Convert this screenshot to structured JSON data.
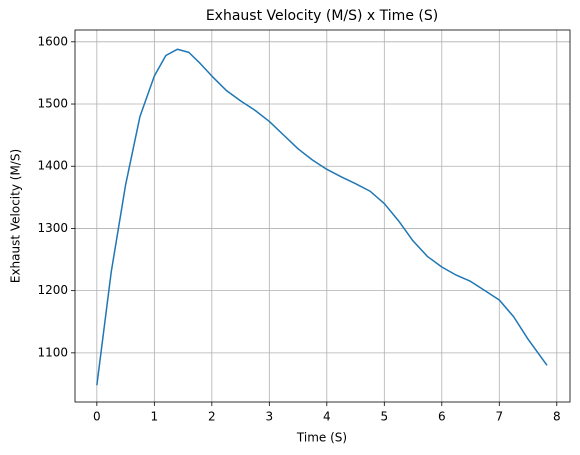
{
  "chart_data": {
    "type": "line",
    "title": "Exhaust Velocity (M/S) x Time (S)",
    "x_label": "Time (S)",
    "y_label": "Exhaust Velocity (M/S)",
    "x": [
      0,
      0.25,
      0.5,
      0.75,
      1,
      1.2,
      1.4,
      1.6,
      1.8,
      2,
      2.25,
      2.5,
      2.75,
      3,
      3.25,
      3.5,
      3.75,
      4,
      4.25,
      4.5,
      4.75,
      5,
      5.25,
      5.5,
      5.75,
      6,
      6.25,
      6.5,
      6.75,
      7,
      7.25,
      7.5,
      7.83
    ],
    "series": [
      {
        "color": "#1f77b4",
        "values": [
          1048,
          1230,
          1370,
          1480,
          1545,
          1578,
          1588,
          1583,
          1565,
          1545,
          1522,
          1505,
          1490,
          1472,
          1450,
          1428,
          1410,
          1395,
          1383,
          1372,
          1360,
          1340,
          1312,
          1280,
          1255,
          1238,
          1225,
          1215,
          1200,
          1185,
          1158,
          1122,
          1080
        ]
      }
    ],
    "xlim": [
      -0.38,
      8.23
    ],
    "ylim": [
      1021,
      1619
    ],
    "xticks": [
      0,
      1,
      2,
      3,
      4,
      5,
      6,
      7,
      8
    ],
    "yticks": [
      1100,
      1200,
      1300,
      1400,
      1500,
      1600
    ],
    "grid": true
  }
}
